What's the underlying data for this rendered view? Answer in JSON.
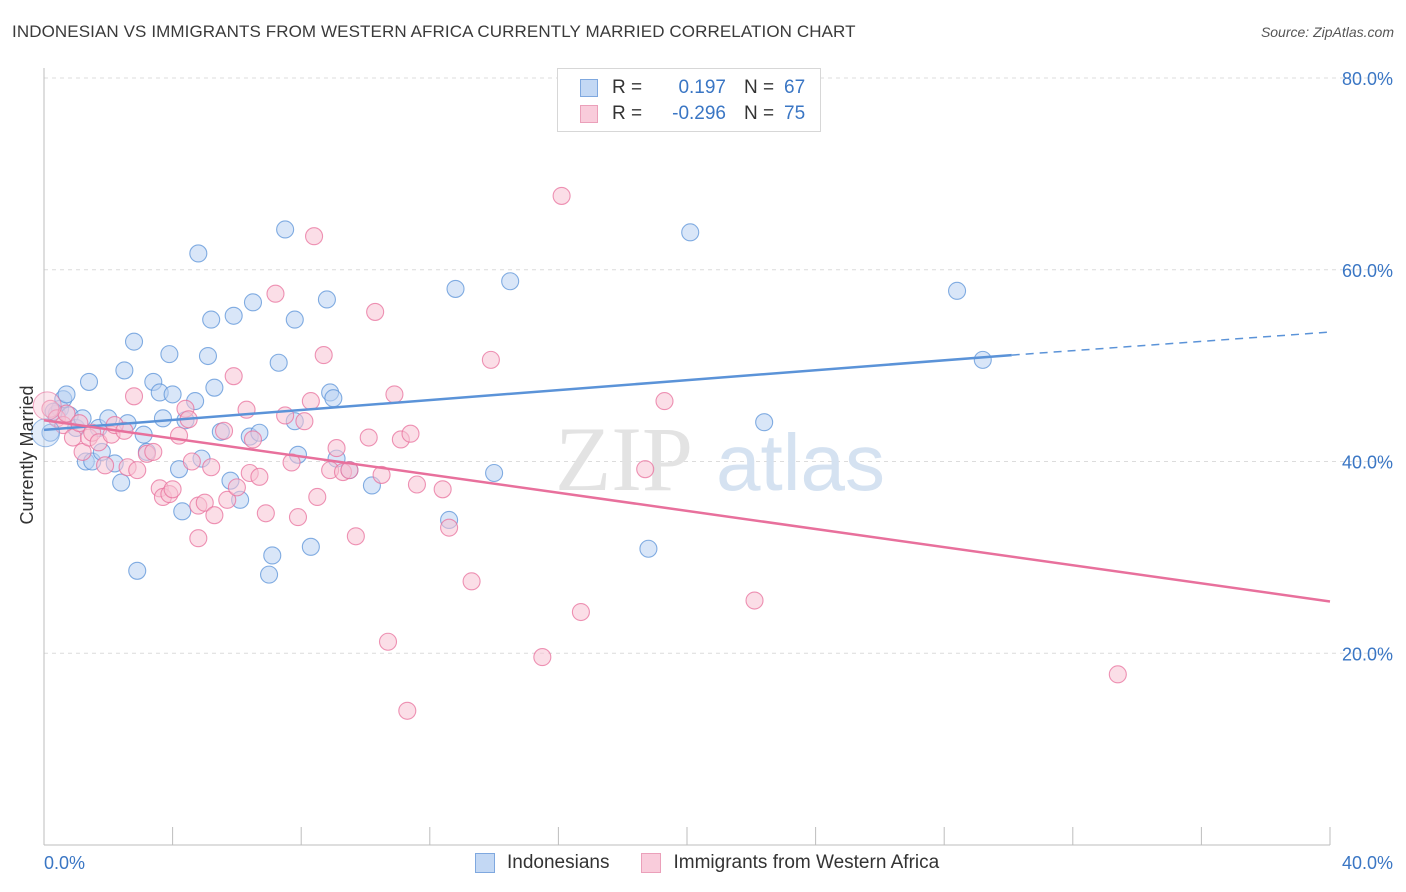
{
  "header": {
    "title": "INDONESIAN VS IMMIGRANTS FROM WESTERN AFRICA CURRENTLY MARRIED CORRELATION CHART",
    "source": "Source: ZipAtlas.com"
  },
  "watermark": {
    "part1": "ZIP",
    "part2": "atlas"
  },
  "legend": {
    "rows": [
      {
        "r_label": "R =",
        "r_value": "0.197",
        "n_label": "N =",
        "n_value": "67",
        "color": "#8ab4e8"
      },
      {
        "r_label": "R =",
        "r_value": "-0.296",
        "n_label": "N =",
        "n_value": "75",
        "color": "#f2a6bf"
      }
    ]
  },
  "bottom_legend": {
    "items": [
      {
        "label": "Indonesians",
        "color": "#8ab4e8"
      },
      {
        "label": "Immigrants from Western Africa",
        "color": "#f2a6bf"
      }
    ]
  },
  "chart_data": {
    "type": "scatter",
    "title": "INDONESIAN VS IMMIGRANTS FROM WESTERN AFRICA CURRENTLY MARRIED CORRELATION CHART",
    "xlabel": "",
    "ylabel": "Currently Married",
    "xlim": [
      0,
      40
    ],
    "ylim": [
      0,
      80
    ],
    "x_tick_labels": [
      "0.0%",
      "40.0%"
    ],
    "y_ticks": [
      20,
      40,
      60,
      80
    ],
    "y_tick_labels": [
      "20.0%",
      "40.0%",
      "60.0%",
      "80.0%"
    ],
    "grid": true,
    "legend_position": "top-center",
    "series": [
      {
        "name": "Indonesians",
        "color": "#5b93d8",
        "fill": "#b9d2f2",
        "trend": {
          "x": [
            0,
            30.1
          ],
          "y": [
            43.3,
            51.1
          ],
          "dashed_to": [
            40,
            53.5
          ]
        },
        "points": [
          {
            "x": 0.2,
            "y": 43
          },
          {
            "x": 0.4,
            "y": 45
          },
          {
            "x": 0.5,
            "y": 45.5
          },
          {
            "x": 0.6,
            "y": 46.5
          },
          {
            "x": 0.7,
            "y": 47
          },
          {
            "x": 0.8,
            "y": 44.8
          },
          {
            "x": 1.0,
            "y": 43.5
          },
          {
            "x": 1.2,
            "y": 44.5
          },
          {
            "x": 1.3,
            "y": 40
          },
          {
            "x": 1.4,
            "y": 48.3
          },
          {
            "x": 1.5,
            "y": 40
          },
          {
            "x": 1.7,
            "y": 43.5
          },
          {
            "x": 1.8,
            "y": 41
          },
          {
            "x": 2.0,
            "y": 44.5
          },
          {
            "x": 2.2,
            "y": 39.8
          },
          {
            "x": 2.4,
            "y": 37.8
          },
          {
            "x": 2.5,
            "y": 49.5
          },
          {
            "x": 2.6,
            "y": 44
          },
          {
            "x": 2.8,
            "y": 52.5
          },
          {
            "x": 2.9,
            "y": 28.6
          },
          {
            "x": 3.1,
            "y": 42.8
          },
          {
            "x": 3.2,
            "y": 41
          },
          {
            "x": 3.4,
            "y": 48.3
          },
          {
            "x": 3.6,
            "y": 47.2
          },
          {
            "x": 3.7,
            "y": 44.5
          },
          {
            "x": 3.9,
            "y": 51.2
          },
          {
            "x": 4.0,
            "y": 47
          },
          {
            "x": 4.2,
            "y": 39.2
          },
          {
            "x": 4.3,
            "y": 34.8
          },
          {
            "x": 4.4,
            "y": 44.3
          },
          {
            "x": 4.7,
            "y": 46.3
          },
          {
            "x": 4.8,
            "y": 61.7
          },
          {
            "x": 4.9,
            "y": 40.3
          },
          {
            "x": 5.1,
            "y": 51
          },
          {
            "x": 5.2,
            "y": 54.8
          },
          {
            "x": 5.3,
            "y": 47.7
          },
          {
            "x": 5.5,
            "y": 43.1
          },
          {
            "x": 5.8,
            "y": 38
          },
          {
            "x": 5.9,
            "y": 55.2
          },
          {
            "x": 6.1,
            "y": 36
          },
          {
            "x": 6.4,
            "y": 42.6
          },
          {
            "x": 6.5,
            "y": 56.6
          },
          {
            "x": 6.7,
            "y": 43
          },
          {
            "x": 7.0,
            "y": 28.2
          },
          {
            "x": 7.1,
            "y": 30.2
          },
          {
            "x": 7.3,
            "y": 50.3
          },
          {
            "x": 7.5,
            "y": 64.2
          },
          {
            "x": 7.8,
            "y": 54.8
          },
          {
            "x": 7.8,
            "y": 44.2
          },
          {
            "x": 7.9,
            "y": 40.7
          },
          {
            "x": 8.3,
            "y": 31.1
          },
          {
            "x": 8.8,
            "y": 56.9
          },
          {
            "x": 8.9,
            "y": 47.2
          },
          {
            "x": 9.0,
            "y": 46.6
          },
          {
            "x": 9.1,
            "y": 40.3
          },
          {
            "x": 9.5,
            "y": 39.1
          },
          {
            "x": 10.2,
            "y": 37.5
          },
          {
            "x": 12.6,
            "y": 33.9
          },
          {
            "x": 12.8,
            "y": 58
          },
          {
            "x": 14.0,
            "y": 38.8
          },
          {
            "x": 14.5,
            "y": 58.8
          },
          {
            "x": 18.8,
            "y": 30.9
          },
          {
            "x": 20.1,
            "y": 63.9
          },
          {
            "x": 22.4,
            "y": 44.1
          },
          {
            "x": 28.4,
            "y": 57.8
          },
          {
            "x": 29.2,
            "y": 50.6
          },
          {
            "x": 0.3,
            "y": 45.2
          }
        ]
      },
      {
        "name": "Immigrants from Western Africa",
        "color": "#e8709c",
        "fill": "#f7c3d4",
        "trend": {
          "x": [
            0,
            40
          ],
          "y": [
            44.3,
            25.4
          ]
        },
        "points": [
          {
            "x": 0.2,
            "y": 45.5
          },
          {
            "x": 0.4,
            "y": 44.5
          },
          {
            "x": 0.6,
            "y": 43.8
          },
          {
            "x": 0.7,
            "y": 45
          },
          {
            "x": 0.9,
            "y": 42.5
          },
          {
            "x": 1.1,
            "y": 44
          },
          {
            "x": 1.2,
            "y": 41
          },
          {
            "x": 1.4,
            "y": 42.5
          },
          {
            "x": 1.5,
            "y": 43
          },
          {
            "x": 1.7,
            "y": 42
          },
          {
            "x": 1.9,
            "y": 39.6
          },
          {
            "x": 2.1,
            "y": 42.8
          },
          {
            "x": 2.2,
            "y": 43.8
          },
          {
            "x": 2.5,
            "y": 43.2
          },
          {
            "x": 2.6,
            "y": 39.4
          },
          {
            "x": 2.9,
            "y": 39.1
          },
          {
            "x": 2.8,
            "y": 46.8
          },
          {
            "x": 3.2,
            "y": 40.8
          },
          {
            "x": 3.4,
            "y": 41
          },
          {
            "x": 3.6,
            "y": 37.2
          },
          {
            "x": 3.7,
            "y": 36.3
          },
          {
            "x": 3.9,
            "y": 36.6
          },
          {
            "x": 4.0,
            "y": 37.1
          },
          {
            "x": 4.2,
            "y": 42.7
          },
          {
            "x": 4.4,
            "y": 45.5
          },
          {
            "x": 4.5,
            "y": 44.4
          },
          {
            "x": 4.6,
            "y": 40
          },
          {
            "x": 4.8,
            "y": 35.4
          },
          {
            "x": 4.8,
            "y": 32
          },
          {
            "x": 5.0,
            "y": 35.7
          },
          {
            "x": 5.2,
            "y": 39.4
          },
          {
            "x": 5.3,
            "y": 34.4
          },
          {
            "x": 5.6,
            "y": 43.2
          },
          {
            "x": 5.7,
            "y": 36
          },
          {
            "x": 5.9,
            "y": 48.9
          },
          {
            "x": 6.0,
            "y": 37.3
          },
          {
            "x": 6.3,
            "y": 45.4
          },
          {
            "x": 6.4,
            "y": 38.8
          },
          {
            "x": 6.5,
            "y": 42.3
          },
          {
            "x": 6.7,
            "y": 38.4
          },
          {
            "x": 6.9,
            "y": 34.6
          },
          {
            "x": 7.2,
            "y": 57.5
          },
          {
            "x": 7.5,
            "y": 44.8
          },
          {
            "x": 7.7,
            "y": 39.9
          },
          {
            "x": 7.9,
            "y": 34.2
          },
          {
            "x": 8.1,
            "y": 44.2
          },
          {
            "x": 8.3,
            "y": 46.3
          },
          {
            "x": 8.5,
            "y": 36.3
          },
          {
            "x": 8.7,
            "y": 51.1
          },
          {
            "x": 8.9,
            "y": 39.1
          },
          {
            "x": 9.1,
            "y": 41.4
          },
          {
            "x": 9.3,
            "y": 38.9
          },
          {
            "x": 9.5,
            "y": 39.1
          },
          {
            "x": 9.7,
            "y": 32.2
          },
          {
            "x": 10.1,
            "y": 42.5
          },
          {
            "x": 10.5,
            "y": 38.6
          },
          {
            "x": 10.7,
            "y": 21.2
          },
          {
            "x": 10.9,
            "y": 47
          },
          {
            "x": 11.1,
            "y": 42.3
          },
          {
            "x": 11.4,
            "y": 42.9
          },
          {
            "x": 11.6,
            "y": 37.6
          },
          {
            "x": 12.4,
            "y": 37.1
          },
          {
            "x": 12.6,
            "y": 33.1
          },
          {
            "x": 13.3,
            "y": 27.5
          },
          {
            "x": 13.9,
            "y": 50.6
          },
          {
            "x": 15.5,
            "y": 19.6
          },
          {
            "x": 16.1,
            "y": 67.7
          },
          {
            "x": 16.7,
            "y": 24.3
          },
          {
            "x": 18.7,
            "y": 39.2
          },
          {
            "x": 19.3,
            "y": 46.3
          },
          {
            "x": 11.3,
            "y": 14
          },
          {
            "x": 8.4,
            "y": 63.5
          },
          {
            "x": 10.3,
            "y": 55.6
          },
          {
            "x": 22.1,
            "y": 25.5
          },
          {
            "x": 33.4,
            "y": 17.8
          }
        ]
      }
    ]
  }
}
